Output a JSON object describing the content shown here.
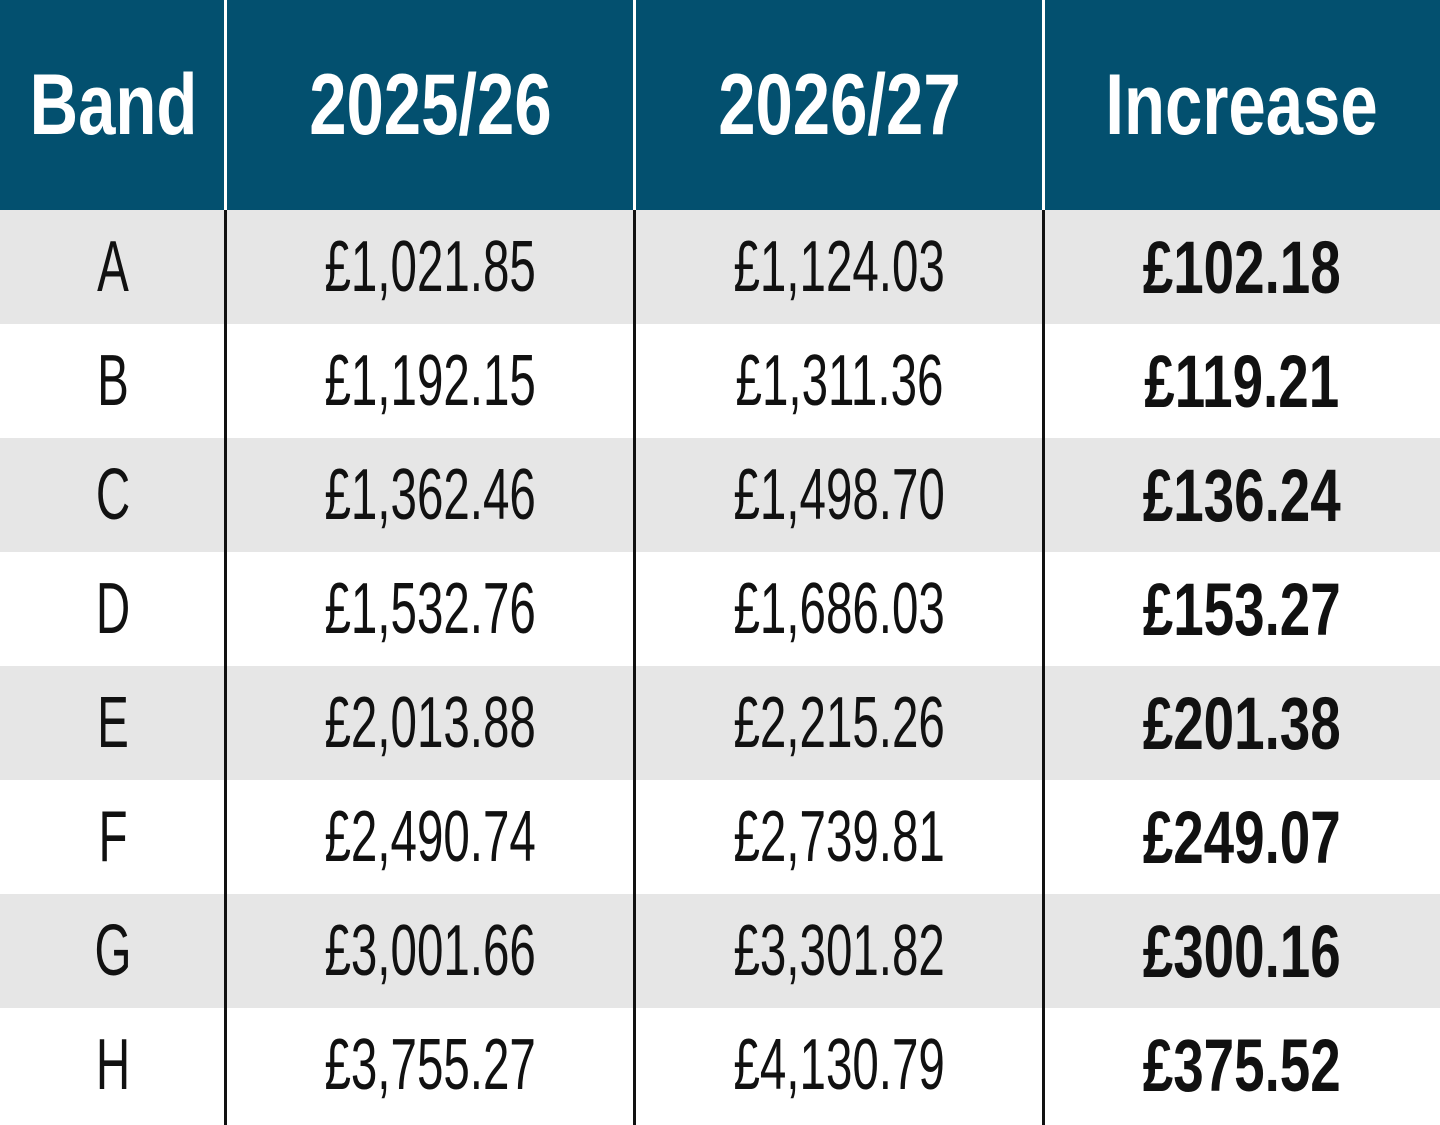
{
  "chart_data": {
    "type": "table",
    "columns": [
      "Band",
      "2025/26",
      "2026/27",
      "Increase"
    ],
    "rows": [
      [
        "A",
        "£1,021.85",
        "£1,124.03",
        "£102.18"
      ],
      [
        "B",
        "£1,192.15",
        "£1,311.36",
        "£119.21"
      ],
      [
        "C",
        "£1,362.46",
        "£1,498.70",
        "£136.24"
      ],
      [
        "D",
        "£1,532.76",
        "£1,686.03",
        "£153.27"
      ],
      [
        "E",
        "£2,013.88",
        "£2,215.26",
        "£201.38"
      ],
      [
        "F",
        "£2,490.74",
        "£2,739.81",
        "£249.07"
      ],
      [
        "G",
        "£3,001.66",
        "£3,301.82",
        "£300.16"
      ],
      [
        "H",
        "£3,755.27",
        "£4,130.79",
        "£375.52"
      ]
    ],
    "colors": {
      "header_bg": "#03506f",
      "header_text": "#ffffff",
      "row_shade": "#e6e6e6",
      "row_plain": "#ffffff",
      "text": "#111111"
    }
  }
}
